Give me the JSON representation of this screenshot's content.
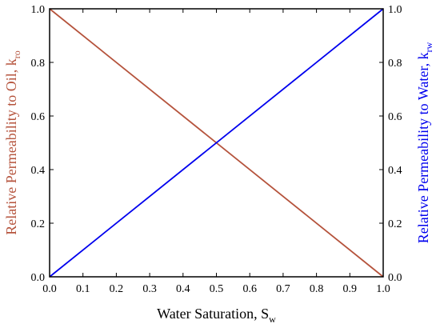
{
  "chart_data": {
    "type": "line",
    "xlabel_main": "Water Saturation, S",
    "xlabel_sub": "w",
    "ylabel_left_main": "Relative Permeability to Oil, k",
    "ylabel_left_sub": "ro",
    "ylabel_right_main": "Relative Permeability to Water, k",
    "ylabel_right_sub": "rw",
    "xlim": [
      0,
      1
    ],
    "ylim_left": [
      0,
      1
    ],
    "ylim_right": [
      0,
      1
    ],
    "x_ticks": [
      "0.0",
      "0.1",
      "0.2",
      "0.3",
      "0.4",
      "0.5",
      "0.6",
      "0.7",
      "0.8",
      "0.9",
      "1.0"
    ],
    "y_ticks": [
      "0.0",
      "0.2",
      "0.4",
      "0.6",
      "0.8",
      "1.0"
    ],
    "series": [
      {
        "axis": "left",
        "color": "#b5533c",
        "x": [
          0,
          1
        ],
        "y": [
          1,
          0
        ]
      },
      {
        "axis": "right",
        "color": "#0000ee",
        "x": [
          0,
          1
        ],
        "y": [
          0,
          1
        ]
      }
    ],
    "left_label_color": "#b5533c",
    "right_label_color": "#0000ee"
  }
}
